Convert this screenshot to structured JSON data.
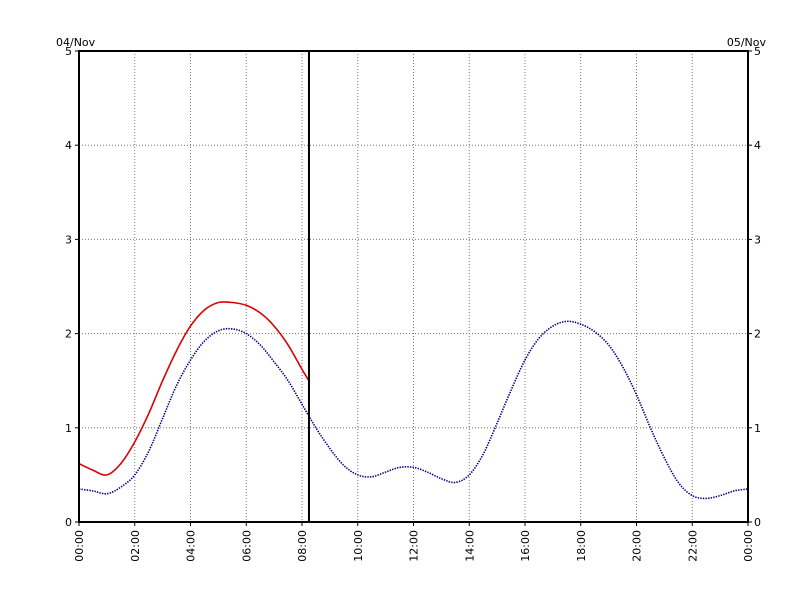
{
  "chart_data": {
    "type": "line",
    "title": "",
    "xlabel": "",
    "ylabel": "",
    "date_start": "04/Nov",
    "date_end": "05/Nov",
    "xlim": [
      0,
      24
    ],
    "ylim": [
      0,
      5
    ],
    "x_tick_labels": [
      "00:00",
      "02:00",
      "04:00",
      "06:00",
      "08:00",
      "10:00",
      "12:00",
      "14:00",
      "16:00",
      "18:00",
      "20:00",
      "22:00",
      "00:00"
    ],
    "y_tick_labels": [
      "0",
      "1",
      "2",
      "3",
      "4",
      "5"
    ],
    "grid": true,
    "current_time_marker_x": 8.25,
    "series": [
      {
        "color": "#dd0000",
        "style": "solid",
        "x": [
          0,
          0.5,
          1.0,
          1.5,
          2.0,
          2.5,
          3.0,
          3.5,
          4.0,
          4.5,
          5.0,
          5.5,
          6.0,
          6.5,
          7.0,
          7.5,
          8.0,
          8.25
        ],
        "y": [
          0.62,
          0.55,
          0.5,
          0.62,
          0.85,
          1.15,
          1.5,
          1.82,
          2.08,
          2.25,
          2.33,
          2.33,
          2.3,
          2.22,
          2.08,
          1.88,
          1.62,
          1.5
        ]
      },
      {
        "color": "#00008b",
        "style": "dotted",
        "x": [
          0,
          0.5,
          1.0,
          1.5,
          2.0,
          2.5,
          3.0,
          3.5,
          4.0,
          4.5,
          5.0,
          5.5,
          6.0,
          6.5,
          7.0,
          7.5,
          8.0,
          8.5,
          9.0,
          9.5,
          10.0,
          10.5,
          11.0,
          11.5,
          12.0,
          12.5,
          13.0,
          13.5,
          14.0,
          14.5,
          15.0,
          15.5,
          16.0,
          16.5,
          17.0,
          17.5,
          18.0,
          18.5,
          19.0,
          19.5,
          20.0,
          20.5,
          21.0,
          21.5,
          22.0,
          22.5,
          23.0,
          23.5,
          24.0
        ],
        "y": [
          0.35,
          0.33,
          0.3,
          0.37,
          0.5,
          0.75,
          1.1,
          1.45,
          1.72,
          1.92,
          2.03,
          2.05,
          2.0,
          1.88,
          1.7,
          1.5,
          1.25,
          1.0,
          0.78,
          0.6,
          0.5,
          0.48,
          0.53,
          0.58,
          0.58,
          0.53,
          0.46,
          0.42,
          0.5,
          0.72,
          1.05,
          1.4,
          1.72,
          1.95,
          2.08,
          2.13,
          2.1,
          2.02,
          1.88,
          1.65,
          1.35,
          1.0,
          0.68,
          0.42,
          0.28,
          0.25,
          0.28,
          0.33,
          0.35
        ]
      }
    ]
  }
}
